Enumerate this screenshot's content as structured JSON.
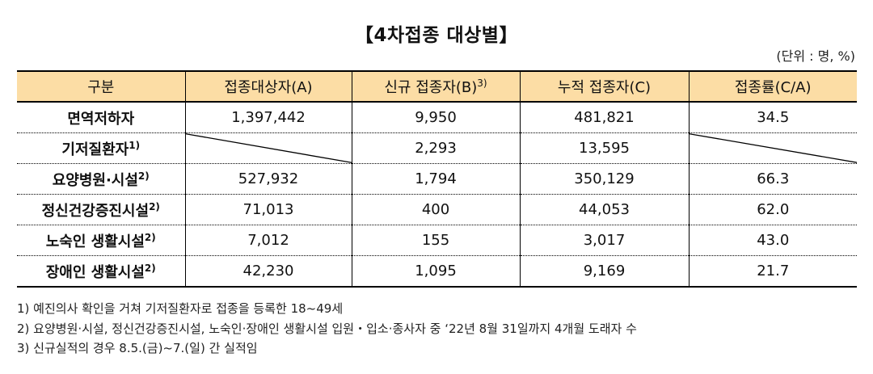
{
  "title": "【4차접종 대상별】",
  "unit": "(단위 : 명, %)",
  "table": {
    "headers": [
      {
        "label": "구분",
        "sup": ""
      },
      {
        "label": "접종대상자(A)",
        "sup": ""
      },
      {
        "label": "신규 접종자(B)",
        "sup": "3)"
      },
      {
        "label": "누적 접종자(C)",
        "sup": ""
      },
      {
        "label": "접종률(C/A)",
        "sup": ""
      }
    ],
    "rows": [
      {
        "category": "면역저하자",
        "sup": "",
        "target": "1,397,442",
        "new": "9,950",
        "cumulative": "481,821",
        "rate": "34.5"
      },
      {
        "category": "기저질환자",
        "sup": "1)",
        "target": "",
        "new": "2,293",
        "cumulative": "13,595",
        "rate": ""
      },
      {
        "category": "요양병원·시설",
        "sup": "2)",
        "target": "527,932",
        "new": "1,794",
        "cumulative": "350,129",
        "rate": "66.3"
      },
      {
        "category": "정신건강증진시설",
        "sup": "2)",
        "target": "71,013",
        "new": "400",
        "cumulative": "44,053",
        "rate": "62.0"
      },
      {
        "category": "노숙인 생활시설",
        "sup": "2)",
        "target": "7,012",
        "new": "155",
        "cumulative": "3,017",
        "rate": "43.0"
      },
      {
        "category": "장애인 생활시설",
        "sup": "2)",
        "target": "42,230",
        "new": "1,095",
        "cumulative": "9,169",
        "rate": "21.7"
      }
    ]
  },
  "notes": [
    "1) 예진의사 확인을 거쳐 기저질환자로 접종을 등록한 18~49세",
    "2) 요양병원·시설, 정신건강증진시설, 노숙인·장애인 생활시설 입원・입소·종사자 중 ‘22년 8월 31일까지 4개월 도래자 수",
    "3) 신규실적의 경우 8.5.(금)~7.(일) 간 실적임"
  ]
}
